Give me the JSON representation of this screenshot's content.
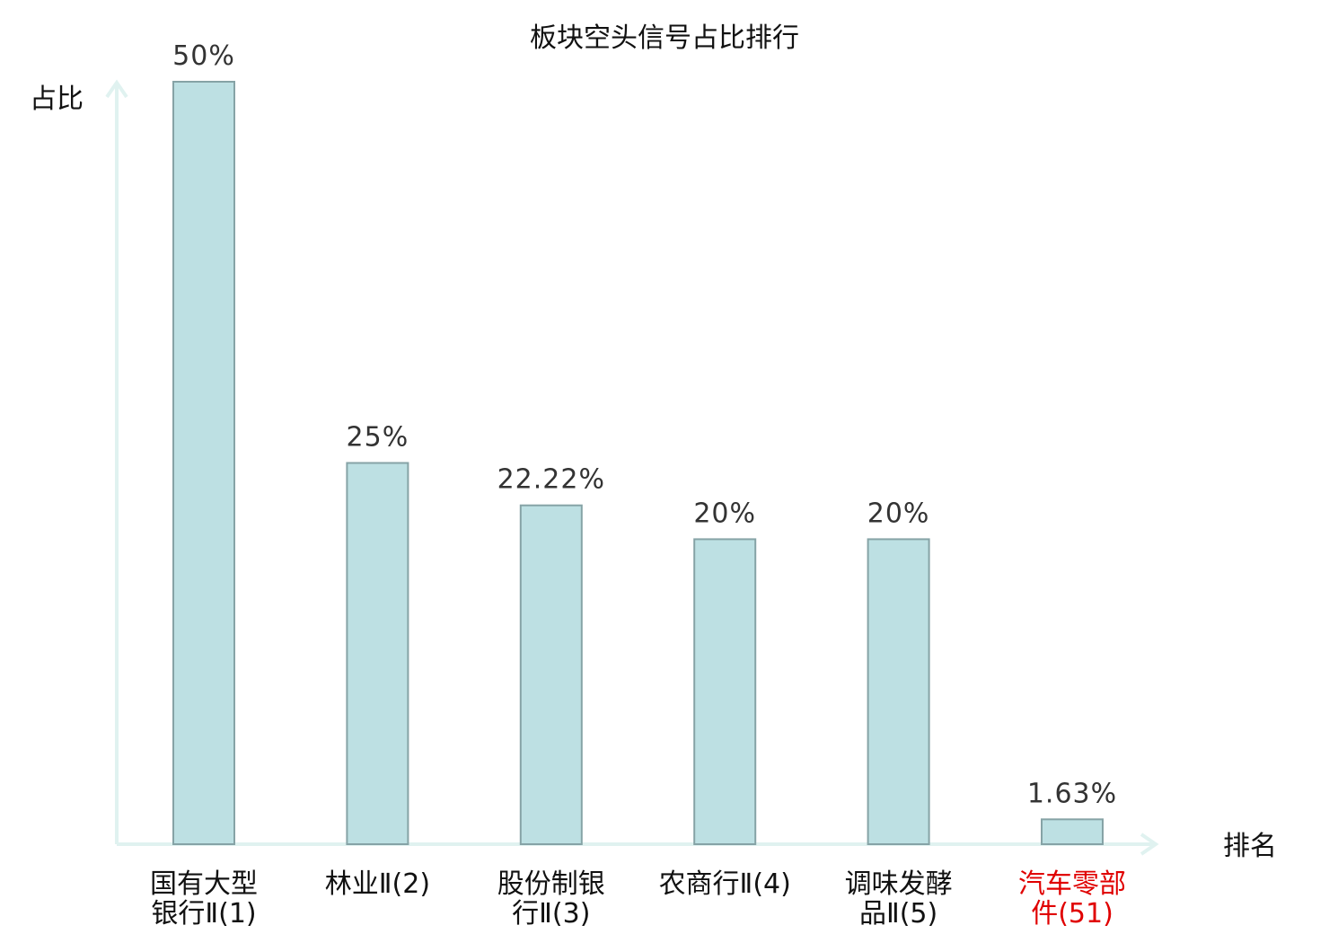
{
  "chart_data": {
    "type": "bar",
    "title": "板块空头信号占比排行",
    "ylabel": "占比",
    "xlabel": "排名",
    "ylim": [
      0,
      50
    ],
    "grid": false,
    "categories": [
      [
        "国有大型",
        "银行Ⅱ(1)"
      ],
      [
        "林业Ⅱ(2)"
      ],
      [
        "股份制银",
        "行Ⅱ(3)"
      ],
      [
        "农商行Ⅱ(4)"
      ],
      [
        "调味发酵",
        "品Ⅱ(5)"
      ],
      [
        "汽车零部",
        "件(51)"
      ]
    ],
    "values": [
      50,
      25,
      22.22,
      20,
      20,
      1.63
    ],
    "value_labels": [
      "50%",
      "25%",
      "22.22%",
      "20%",
      "20%",
      "1.63%"
    ],
    "highlight_index": 5,
    "colors": {
      "bar_fill": "#bde0e3",
      "bar_stroke": "#86a3a6",
      "axis": "#e0f2f0",
      "highlight_text": "#e00000"
    }
  }
}
